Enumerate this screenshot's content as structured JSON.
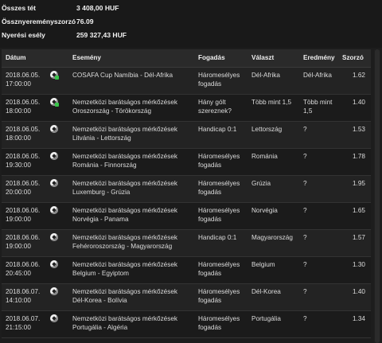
{
  "summary": {
    "total_stake_label": "Összes tét",
    "total_stake_value": "3 408,00 HUF",
    "total_odds_label": "Össznyereményszorzó",
    "total_odds_value": "76.09",
    "win_chance_label": "Nyerési esély",
    "win_chance_value": "259 327,43 HUF"
  },
  "table": {
    "headers": {
      "date": "Dátum",
      "event": "Esemény",
      "bet": "Fogadás",
      "choice": "Választ",
      "result": "Eredmény",
      "odds": "Szorzó"
    },
    "rows": [
      {
        "date": "2018.06.05.",
        "time": "17:00:00",
        "event1": "COSAFA Cup Namíbia - Dél-Afrika",
        "event2": "",
        "bet1": "Háromesélyes",
        "bet2": "fogadás",
        "choice1": "Dél-Afrika",
        "choice2": "",
        "result1": "Dél-Afrika",
        "result2": "",
        "odds": "1.62",
        "icon": "soccer-ball-live-icon"
      },
      {
        "date": "2018.06.05.",
        "time": "18:00:00",
        "event1": "Nemzetközi barátságos mérkőzések",
        "event2": "Oroszország - Törökország",
        "bet1": "Hány gólt",
        "bet2": "szereznek?",
        "choice1": "Több mint 1,5",
        "choice2": "",
        "result1": "Több mint",
        "result2": "1,5",
        "odds": "1.40",
        "icon": "soccer-ball-live-icon"
      },
      {
        "date": "2018.06.05.",
        "time": "18:00:00",
        "event1": "Nemzetközi barátságos mérkőzések",
        "event2": "Litvánia - Lettország",
        "bet1": "Handicap 0:1",
        "bet2": "",
        "choice1": "Lettország",
        "choice2": "",
        "result1": "?",
        "result2": "",
        "odds": "1.53",
        "icon": "soccer-ball-icon"
      },
      {
        "date": "2018.06.05.",
        "time": "19:30:00",
        "event1": "Nemzetközi barátságos mérkőzések",
        "event2": "Románia - Finnország",
        "bet1": "Háromesélyes",
        "bet2": "fogadás",
        "choice1": "Románia",
        "choice2": "",
        "result1": "?",
        "result2": "",
        "odds": "1.78",
        "icon": "soccer-ball-icon"
      },
      {
        "date": "2018.06.05.",
        "time": "20:00:00",
        "event1": "Nemzetközi barátságos mérkőzések",
        "event2": "Luxemburg - Grúzia",
        "bet1": "Háromesélyes",
        "bet2": "fogadás",
        "choice1": "Grúzia",
        "choice2": "",
        "result1": "?",
        "result2": "",
        "odds": "1.95",
        "icon": "soccer-ball-icon"
      },
      {
        "date": "2018.06.06.",
        "time": "19:00:00",
        "event1": "Nemzetközi barátságos mérkőzések",
        "event2": "Norvégia - Panama",
        "bet1": "Háromesélyes",
        "bet2": "fogadás",
        "choice1": "Norvégia",
        "choice2": "",
        "result1": "?",
        "result2": "",
        "odds": "1.65",
        "icon": "soccer-ball-icon"
      },
      {
        "date": "2018.06.06.",
        "time": "19:00:00",
        "event1": "Nemzetközi barátságos mérkőzések",
        "event2": "Fehéroroszország - Magyarország",
        "bet1": "Handicap 0:1",
        "bet2": "",
        "choice1": "Magyarország",
        "choice2": "",
        "result1": "?",
        "result2": "",
        "odds": "1.57",
        "icon": "soccer-ball-icon"
      },
      {
        "date": "2018.06.06.",
        "time": "20:45:00",
        "event1": "Nemzetközi barátságos mérkőzések",
        "event2": "Belgium - Egyiptom",
        "bet1": "Háromesélyes",
        "bet2": "fogadás",
        "choice1": "Belgium",
        "choice2": "",
        "result1": "?",
        "result2": "",
        "odds": "1.30",
        "icon": "soccer-ball-icon"
      },
      {
        "date": "2018.06.07.",
        "time": "14:10:00",
        "event1": "Nemzetközi barátságos mérkőzések",
        "event2": "Dél-Korea - Bolívia",
        "bet1": "Háromesélyes",
        "bet2": "fogadás",
        "choice1": "Dél-Korea",
        "choice2": "",
        "result1": "?",
        "result2": "",
        "odds": "1.40",
        "icon": "soccer-ball-icon"
      },
      {
        "date": "2018.06.07.",
        "time": "21:15:00",
        "event1": "Nemzetközi barátságos mérkőzések",
        "event2": "Portugália - Algéria",
        "bet1": "Háromesélyes",
        "bet2": "fogadás",
        "choice1": "Portugália",
        "choice2": "",
        "result1": "?",
        "result2": "",
        "odds": "1.34",
        "icon": "soccer-ball-icon"
      }
    ]
  }
}
